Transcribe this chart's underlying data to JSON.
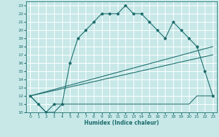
{
  "xlabel": "Humidex (Indice chaleur)",
  "background_color": "#c8e8e8",
  "grid_color": "#ffffff",
  "line_color": "#1a6b6b",
  "xlim": [
    -0.5,
    23.5
  ],
  "ylim": [
    10,
    23.5
  ],
  "xticks": [
    0,
    1,
    2,
    3,
    4,
    5,
    6,
    7,
    8,
    9,
    10,
    11,
    12,
    13,
    14,
    15,
    16,
    17,
    18,
    19,
    20,
    21,
    22,
    23
  ],
  "yticks": [
    10,
    11,
    12,
    13,
    14,
    15,
    16,
    17,
    18,
    19,
    20,
    21,
    22,
    23
  ],
  "curve1_x": [
    0,
    1,
    2,
    3,
    4,
    5,
    6,
    7,
    8,
    9,
    10,
    11,
    12,
    13,
    14,
    15,
    16,
    17,
    18,
    19,
    20,
    21,
    22,
    23
  ],
  "curve1_y": [
    12,
    11,
    10,
    11,
    11,
    16,
    19,
    20,
    21,
    22,
    22,
    22,
    23,
    22,
    22,
    21,
    20,
    19,
    21,
    20,
    19,
    18,
    15,
    12
  ],
  "curve2_x": [
    0,
    1,
    2,
    3,
    4,
    5,
    6,
    7,
    8,
    9,
    10,
    11,
    12,
    13,
    14,
    15,
    16,
    17,
    18,
    19,
    20,
    21,
    22,
    23
  ],
  "curve2_y": [
    12,
    11,
    10,
    10,
    11,
    11,
    11,
    11,
    11,
    11,
    11,
    11,
    11,
    11,
    11,
    11,
    11,
    11,
    11,
    11,
    11,
    12,
    12,
    12
  ],
  "curve3_x": [
    0,
    23
  ],
  "curve3_y": [
    12,
    18
  ],
  "curve4_x": [
    0,
    23
  ],
  "curve4_y": [
    12,
    17
  ]
}
